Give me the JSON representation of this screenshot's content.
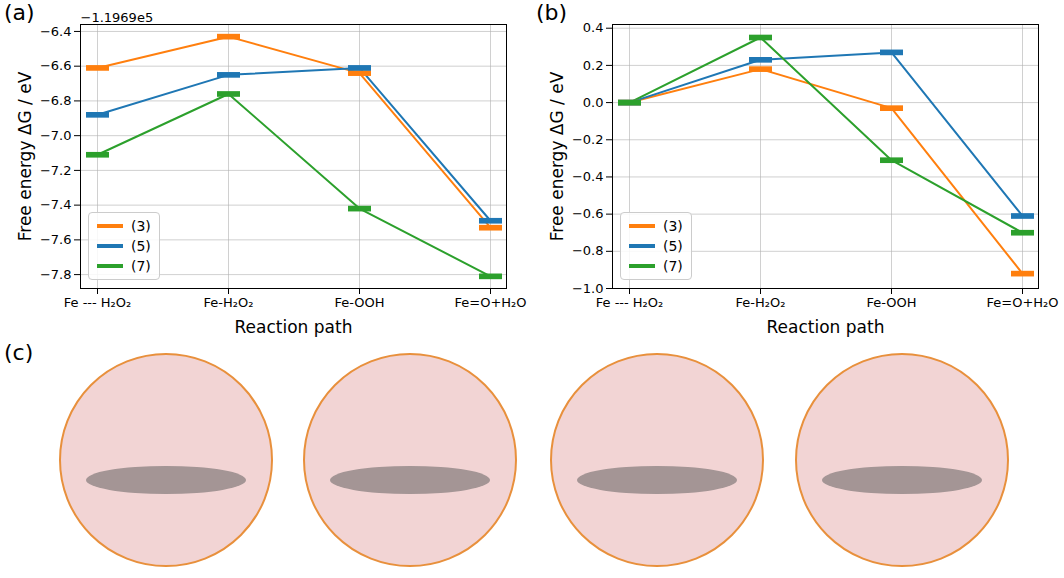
{
  "chart_data": [
    {
      "type": "line",
      "panel_label": "(a)",
      "x_label": "Reaction path",
      "y_label": "Free energy ΔG / eV",
      "annotations": [
        "−1.1969e5"
      ],
      "categories": [
        "Fe --- H₂O₂",
        "Fe-H₂O₂",
        "Fe-OOH",
        "Fe=O+H₂O"
      ],
      "series": [
        {
          "name": "(3)",
          "color": "#ff7f0e",
          "values": [
            -6.61,
            -6.43,
            -6.64,
            -7.53
          ]
        },
        {
          "name": "(5)",
          "color": "#1f77b4",
          "values": [
            -6.88,
            -6.65,
            -6.61,
            -7.49
          ]
        },
        {
          "name": "(7)",
          "color": "#2ca02c",
          "values": [
            -7.11,
            -6.76,
            -7.42,
            -7.81
          ]
        }
      ],
      "ylim": [
        -7.88,
        -6.36
      ],
      "yticks": [
        {
          "value": -7.8,
          "label": "−7.8"
        },
        {
          "value": -7.6,
          "label": "−7.6"
        },
        {
          "value": -7.4,
          "label": "−7.4"
        },
        {
          "value": -7.2,
          "label": "−7.2"
        },
        {
          "value": -7.0,
          "label": "−7.0"
        },
        {
          "value": -6.8,
          "label": "−6.8"
        },
        {
          "value": -6.6,
          "label": "−6.6"
        },
        {
          "value": -6.4,
          "label": "−6.4"
        }
      ],
      "grid": true,
      "legend": "lower left",
      "marker": "hline",
      "line_style": "solid"
    },
    {
      "type": "line",
      "panel_label": "(b)",
      "x_label": "Reaction path",
      "y_label": "Free energy ΔG / eV",
      "categories": [
        "Fe --- H₂O₂",
        "Fe-H₂O₂",
        "Fe-OOH",
        "Fe=O+H₂O"
      ],
      "series": [
        {
          "name": "(3)",
          "color": "#ff7f0e",
          "values": [
            0.0,
            0.18,
            -0.03,
            -0.92
          ]
        },
        {
          "name": "(5)",
          "color": "#1f77b4",
          "values": [
            0.0,
            0.23,
            0.27,
            -0.61
          ]
        },
        {
          "name": "(7)",
          "color": "#2ca02c",
          "values": [
            0.0,
            0.35,
            -0.31,
            -0.7
          ]
        }
      ],
      "ylim": [
        -1.0,
        0.42
      ],
      "yticks": [
        {
          "value": -1.0,
          "label": "−1.0"
        },
        {
          "value": -0.8,
          "label": "−0.8"
        },
        {
          "value": -0.6,
          "label": "−0.6"
        },
        {
          "value": -0.4,
          "label": "−0.4"
        },
        {
          "value": -0.2,
          "label": "−0.2"
        },
        {
          "value": 0,
          "label": "0.0"
        },
        0.2,
        0.4
      ],
      "grid": true,
      "legend": "lower left",
      "marker": "hline",
      "line_style": "solid"
    }
  ],
  "image_panel": {
    "panel_label": "(c)"
  }
}
